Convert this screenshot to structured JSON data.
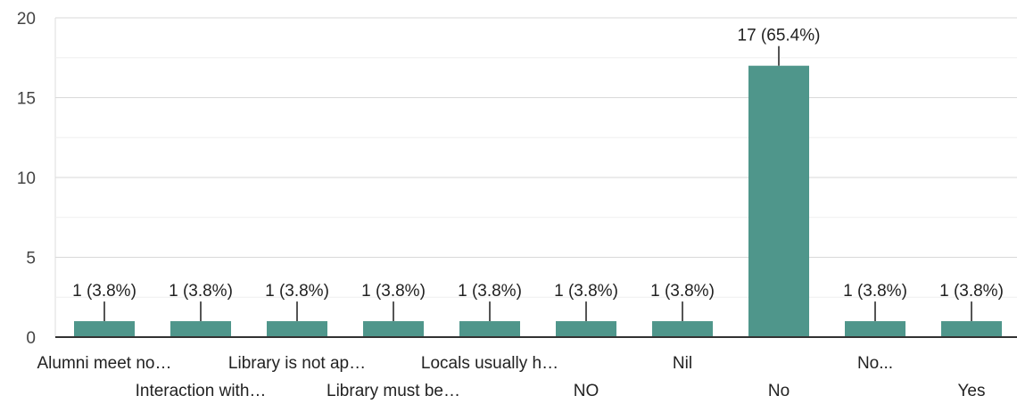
{
  "chart_data": {
    "type": "bar",
    "title": "",
    "xlabel": "",
    "ylabel": "",
    "ylim": [
      0,
      20
    ],
    "yticks": [
      "0",
      "5",
      "10",
      "15",
      "20"
    ],
    "grid": true,
    "bar_color": "#4f968b",
    "categories": [
      "Alumni meet no…",
      "Interaction with…",
      "Library is not ap…",
      "Library must be…",
      "Locals usually h…",
      "NO",
      "Nil",
      "No",
      "No...",
      "Yes"
    ],
    "values": [
      1,
      1,
      1,
      1,
      1,
      1,
      1,
      17,
      1,
      1
    ],
    "data_labels": [
      "1 (3.8%)",
      "1 (3.8%)",
      "1 (3.8%)",
      "1 (3.8%)",
      "1 (3.8%)",
      "1 (3.8%)",
      "1 (3.8%)",
      "17 (65.4%)",
      "1 (3.8%)",
      "1 (3.8%)"
    ]
  }
}
